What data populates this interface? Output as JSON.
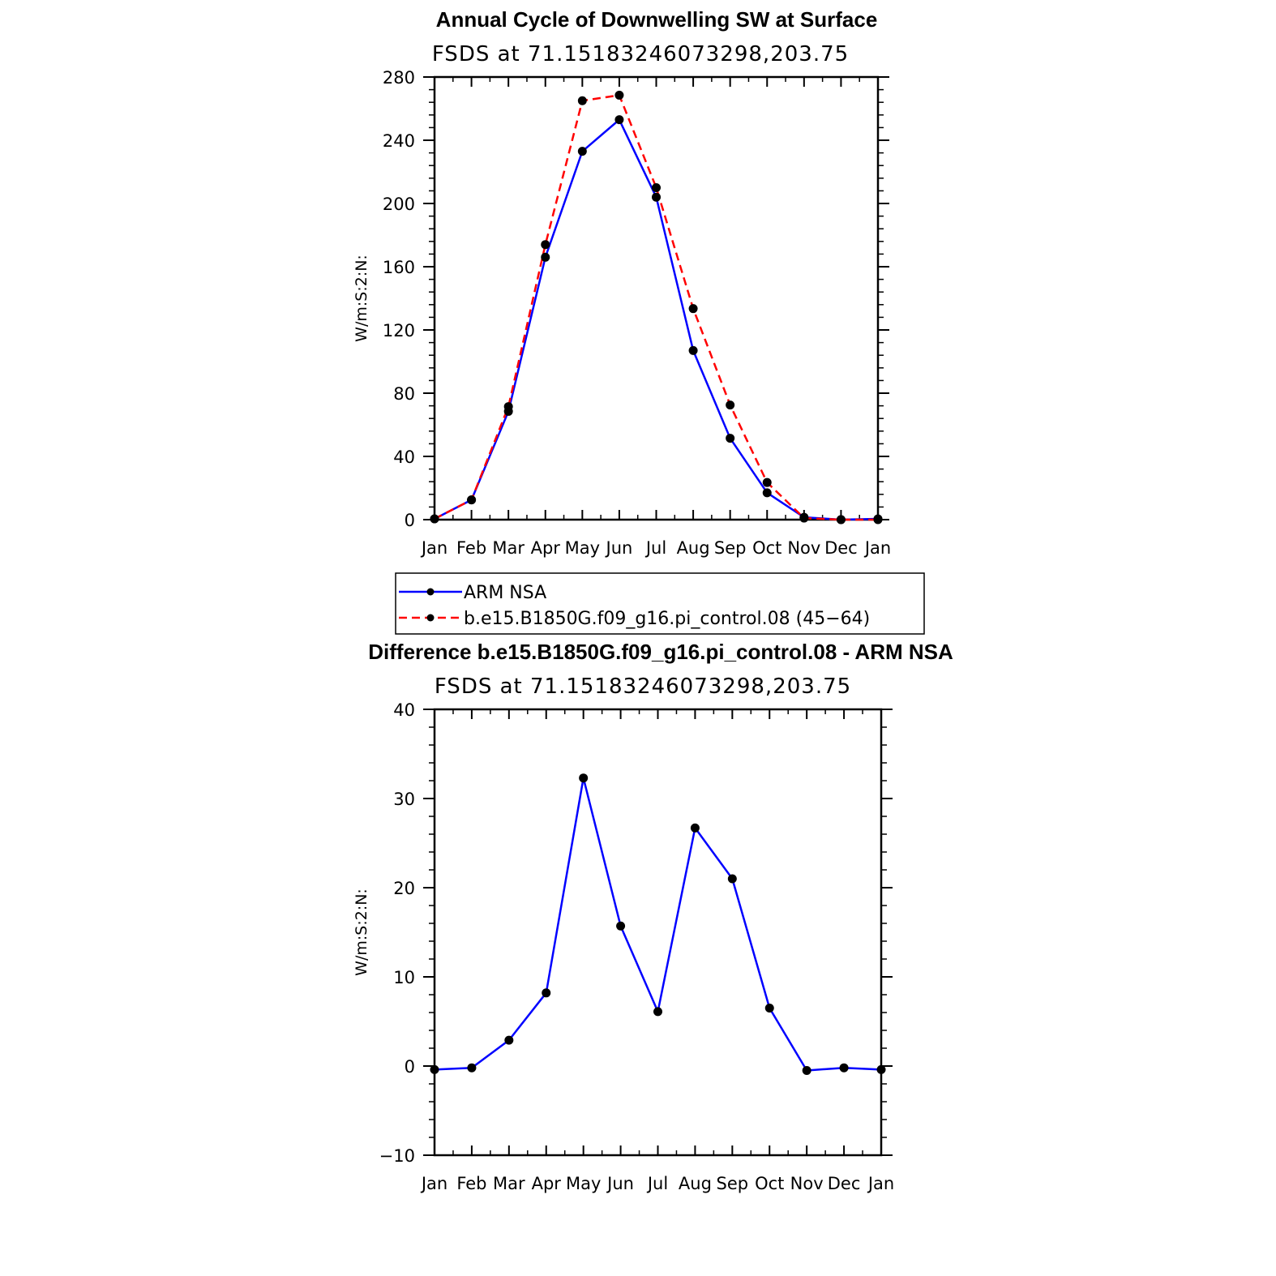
{
  "colors": {
    "obs": "#0000ff",
    "model": "#ff0000",
    "diff": "#0000ff",
    "marker": "#000000"
  },
  "chart_data": [
    {
      "type": "line",
      "title": "Annual Cycle of Downwelling SW at Surface",
      "subtitle": "FSDS  at  71.15183246073298,203.75",
      "xlabel": "",
      "ylabel": "W/m:S:2:N:",
      "categories": [
        "Jan",
        "Feb",
        "Mar",
        "Apr",
        "May",
        "Jun",
        "Jul",
        "Aug",
        "Sep",
        "Oct",
        "Nov",
        "Dec",
        "Jan"
      ],
      "ylim": [
        0,
        280
      ],
      "yticks": [
        0,
        40,
        80,
        120,
        160,
        200,
        240,
        280
      ],
      "yticklabels": [
        "0",
        "40",
        "80",
        "120",
        "160",
        "200",
        "240",
        "280"
      ],
      "series": [
        {
          "name": "ARM  NSA",
          "style": "solid",
          "values": [
            0.5,
            12.5,
            68.5,
            166,
            233,
            253,
            204,
            107,
            51.5,
            17,
            1.5,
            0,
            0.5
          ]
        },
        {
          "name": "b.e15.B1850G.f09_g16.pi_control.08  (45−64)",
          "style": "dashed",
          "values": [
            0.5,
            12.5,
            71.5,
            174,
            265,
            268.5,
            210,
            133.5,
            72.5,
            23.5,
            1,
            0,
            0
          ]
        }
      ],
      "legend": "bottom"
    },
    {
      "type": "line",
      "title": "Difference b.e15.B1850G.f09_g16.pi_control.08 - ARM NSA",
      "subtitle": "FSDS  at  71.15183246073298,203.75",
      "xlabel": "",
      "ylabel": "W/m:S:2:N:",
      "categories": [
        "Jan",
        "Feb",
        "Mar",
        "Apr",
        "May",
        "Jun",
        "Jul",
        "Aug",
        "Sep",
        "Oct",
        "Nov",
        "Dec",
        "Jan"
      ],
      "ylim": [
        -10,
        40
      ],
      "yticks": [
        -10,
        0,
        10,
        20,
        30,
        40
      ],
      "yticklabels": [
        "−10",
        "0",
        "10",
        "20",
        "30",
        "40"
      ],
      "series": [
        {
          "style": "solid",
          "values": [
            -0.4,
            -0.2,
            2.9,
            8.2,
            32.3,
            15.7,
            6.1,
            26.7,
            21.0,
            6.5,
            -0.5,
            -0.2,
            -0.4
          ]
        }
      ]
    }
  ]
}
